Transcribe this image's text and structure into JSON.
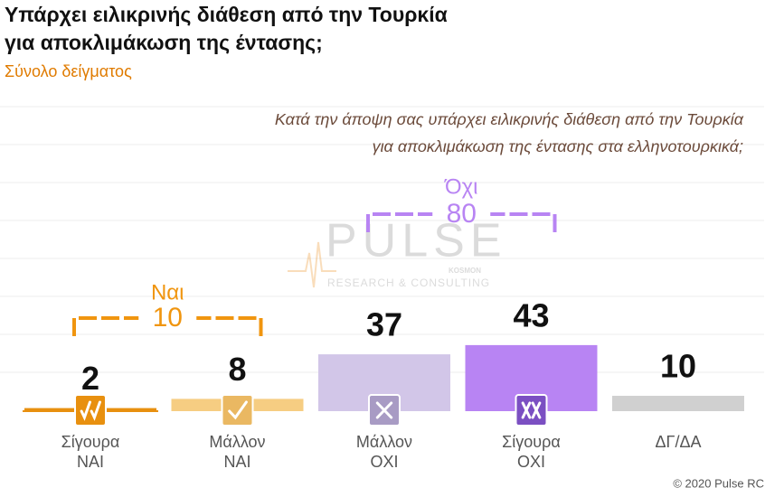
{
  "chart_data": {
    "type": "bar",
    "title": [
      "Υπάρχει ειλικρινής διάθεση από την Τουρκία",
      "για αποκλιμάκωση της έντασης;"
    ],
    "subtitle": "Σύνολο δείγματος",
    "question": [
      "Κατά την άποψη σας υπάρχει ειλικρινής διάθεση από την Τουρκία",
      "για αποκλιμάκωση της έντασης στα ελληνοτουρκικά;"
    ],
    "categories": [
      [
        "Σίγουρα",
        "ΝΑΙ"
      ],
      [
        "Μάλλον",
        "ΝΑΙ"
      ],
      [
        "Μάλλον",
        "ΟΧΙ"
      ],
      [
        "Σίγουρα",
        "ΟΧΙ"
      ],
      [
        "ΔΓ/ΔΑ"
      ]
    ],
    "values": [
      2,
      8,
      37,
      43,
      10
    ],
    "colors": [
      "#e8900f",
      "#f6cd82",
      "#d2c6e8",
      "#b884f3",
      "#d0d0d0"
    ],
    "groups": [
      {
        "label": "Ναι",
        "total": 10,
        "color": "#f0950f"
      },
      {
        "label": "Όχι",
        "total": 80,
        "color": "#b884f3"
      }
    ],
    "watermark": {
      "name": "PULSE",
      "tag": "KOSMON",
      "line": "RESEARCH & CONSULTING"
    },
    "copyright": "© 2020 Pulse RC"
  }
}
